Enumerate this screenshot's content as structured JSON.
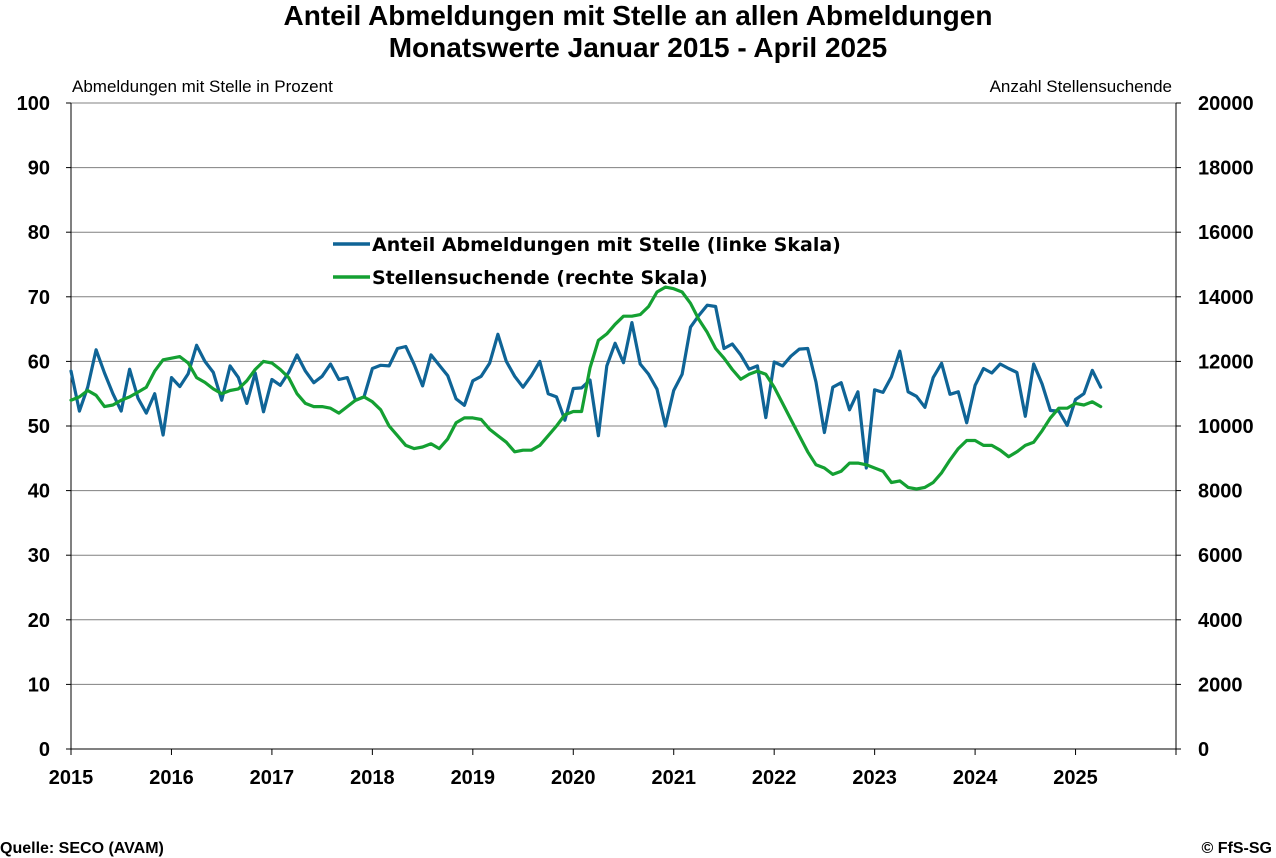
{
  "title": "Anteil Abmeldungen mit Stelle an allen Abmeldungen",
  "subtitle": "Monatswerte Januar 2015 - April 2025",
  "footer": {
    "source": "Quelle: SECO (AVAM)",
    "copyright": "© FfS-SG"
  },
  "colors": {
    "series_share": "#0F6496",
    "series_jobseekers": "#14A032",
    "gridline": "#808080"
  },
  "chart_data": {
    "type": "line",
    "title": "Anteil Abmeldungen mit Stelle an allen Abmeldungen",
    "subtitle": "Monatswerte Januar 2015 - April 2025",
    "ylabel": "Abmeldungen mit Stelle in Prozent",
    "y2label": "Anzahl Stellensuchende",
    "ylim": [
      0,
      100
    ],
    "y2lim": [
      0,
      20000
    ],
    "yticks": [
      0,
      10,
      20,
      30,
      40,
      50,
      60,
      70,
      80,
      90,
      100
    ],
    "y2ticks": [
      0,
      2000,
      4000,
      6000,
      8000,
      10000,
      12000,
      14000,
      16000,
      18000,
      20000
    ],
    "xticks": [
      "2015",
      "2016",
      "2017",
      "2018",
      "2019",
      "2020",
      "2021",
      "2022",
      "2023",
      "2024",
      "2025"
    ],
    "xrange": [
      "2015-01",
      "2025-12"
    ],
    "grid": true,
    "legend_position": "upper-center",
    "series": [
      {
        "name": "Anteil Abmeldungen mit Stelle (linke Skala)",
        "axis": "left",
        "start": "2015-01",
        "values": [
          58.5,
          52.3,
          56.0,
          61.8,
          58.2,
          55.0,
          52.3,
          58.8,
          54.3,
          52.0,
          55.0,
          48.6,
          57.5,
          56.1,
          58.1,
          62.5,
          60.0,
          58.3,
          54.0,
          59.3,
          57.5,
          53.5,
          58.2,
          52.2,
          57.2,
          56.3,
          58.3,
          61.0,
          58.5,
          56.7,
          57.7,
          59.6,
          57.2,
          57.5,
          54.0,
          54.5,
          58.9,
          59.4,
          59.3,
          62.0,
          62.3,
          59.5,
          56.2,
          61.0,
          59.4,
          57.8,
          54.2,
          53.2,
          57.0,
          57.7,
          59.7,
          64.2,
          60.0,
          57.7,
          56.0,
          57.8,
          60.0,
          55.0,
          54.5,
          50.9,
          55.8,
          55.9,
          57.1,
          48.5,
          59.3,
          62.8,
          59.8,
          66.0,
          59.6,
          58.0,
          55.7,
          50.0,
          55.5,
          58.0,
          65.3,
          67.1,
          68.7,
          68.5,
          62.0,
          62.7,
          61.0,
          58.8,
          59.3,
          51.3,
          59.9,
          59.3,
          60.8,
          61.9,
          62.0,
          56.8,
          49.0,
          56.0,
          56.7,
          52.5,
          55.3,
          43.5,
          55.6,
          55.2,
          57.6,
          61.6,
          55.3,
          54.6,
          52.9,
          57.5,
          59.7,
          54.9,
          55.3,
          50.5,
          56.3,
          58.9,
          58.2,
          59.6,
          58.9,
          58.3,
          51.5,
          59.6,
          56.5,
          52.4,
          52.3,
          50.1,
          54.1,
          55.0,
          58.6,
          56.0
        ]
      },
      {
        "name": "Stellensuchende (rechte Skala)",
        "axis": "right",
        "start": "2015-01",
        "values": [
          10800,
          10900,
          11100,
          10950,
          10600,
          10650,
          10800,
          10900,
          11050,
          11200,
          11700,
          12050,
          12100,
          12150,
          11950,
          11500,
          11350,
          11150,
          11000,
          11100,
          11150,
          11400,
          11750,
          12000,
          11950,
          11750,
          11500,
          11000,
          10700,
          10600,
          10600,
          10550,
          10400,
          10600,
          10800,
          10900,
          10750,
          10500,
          10000,
          9700,
          9400,
          9300,
          9350,
          9450,
          9300,
          9600,
          10100,
          10250,
          10250,
          10200,
          9900,
          9700,
          9500,
          9200,
          9250,
          9250,
          9400,
          9700,
          10000,
          10350,
          10450,
          10450,
          11800,
          12650,
          12850,
          13150,
          13400,
          13400,
          13450,
          13700,
          14150,
          14300,
          14250,
          14150,
          13800,
          13300,
          12900,
          12400,
          12100,
          11750,
          11450,
          11600,
          11700,
          11600,
          11200,
          10700,
          10200,
          9700,
          9200,
          8800,
          8700,
          8500,
          8600,
          8850,
          8850,
          8800,
          8700,
          8600,
          8250,
          8300,
          8100,
          8050,
          8100,
          8250,
          8550,
          8950,
          9300,
          9550,
          9550,
          9400,
          9400,
          9250,
          9050,
          9200,
          9400,
          9500,
          9850,
          10250,
          10550,
          10550,
          10700,
          10650,
          10750,
          10600
        ]
      }
    ]
  }
}
